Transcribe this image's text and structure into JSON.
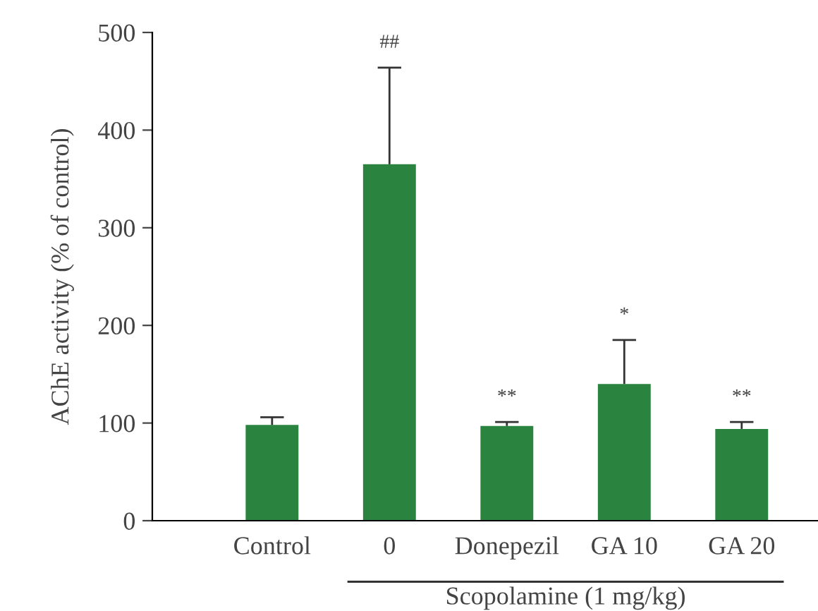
{
  "chart_data": {
    "type": "bar",
    "categories": [
      "Control",
      "0",
      "Donepezil",
      "GA 10",
      "GA 20"
    ],
    "values": [
      98,
      365,
      97,
      140,
      94
    ],
    "errors": [
      [
        98,
        106
      ],
      [
        365,
        464
      ],
      [
        97,
        101
      ],
      [
        140,
        185
      ],
      [
        94,
        101
      ]
    ],
    "color": "#2a843f",
    "ylabel": "AChE activity (% of control)",
    "xlabel": "Scopolamine (1 mg/kg)",
    "ylim": [
      0,
      500
    ],
    "yticks": [
      0,
      100,
      200,
      300,
      400,
      500
    ],
    "grid": false,
    "annotations": [
      {
        "text": "##",
        "x": "0",
        "y": 464
      },
      {
        "text": "**",
        "x": "Donepezil",
        "y": 101
      },
      {
        "text": "*",
        "x": "GA 10",
        "y": 185
      },
      {
        "text": "**",
        "x": "GA 20",
        "y": 101
      }
    ]
  }
}
